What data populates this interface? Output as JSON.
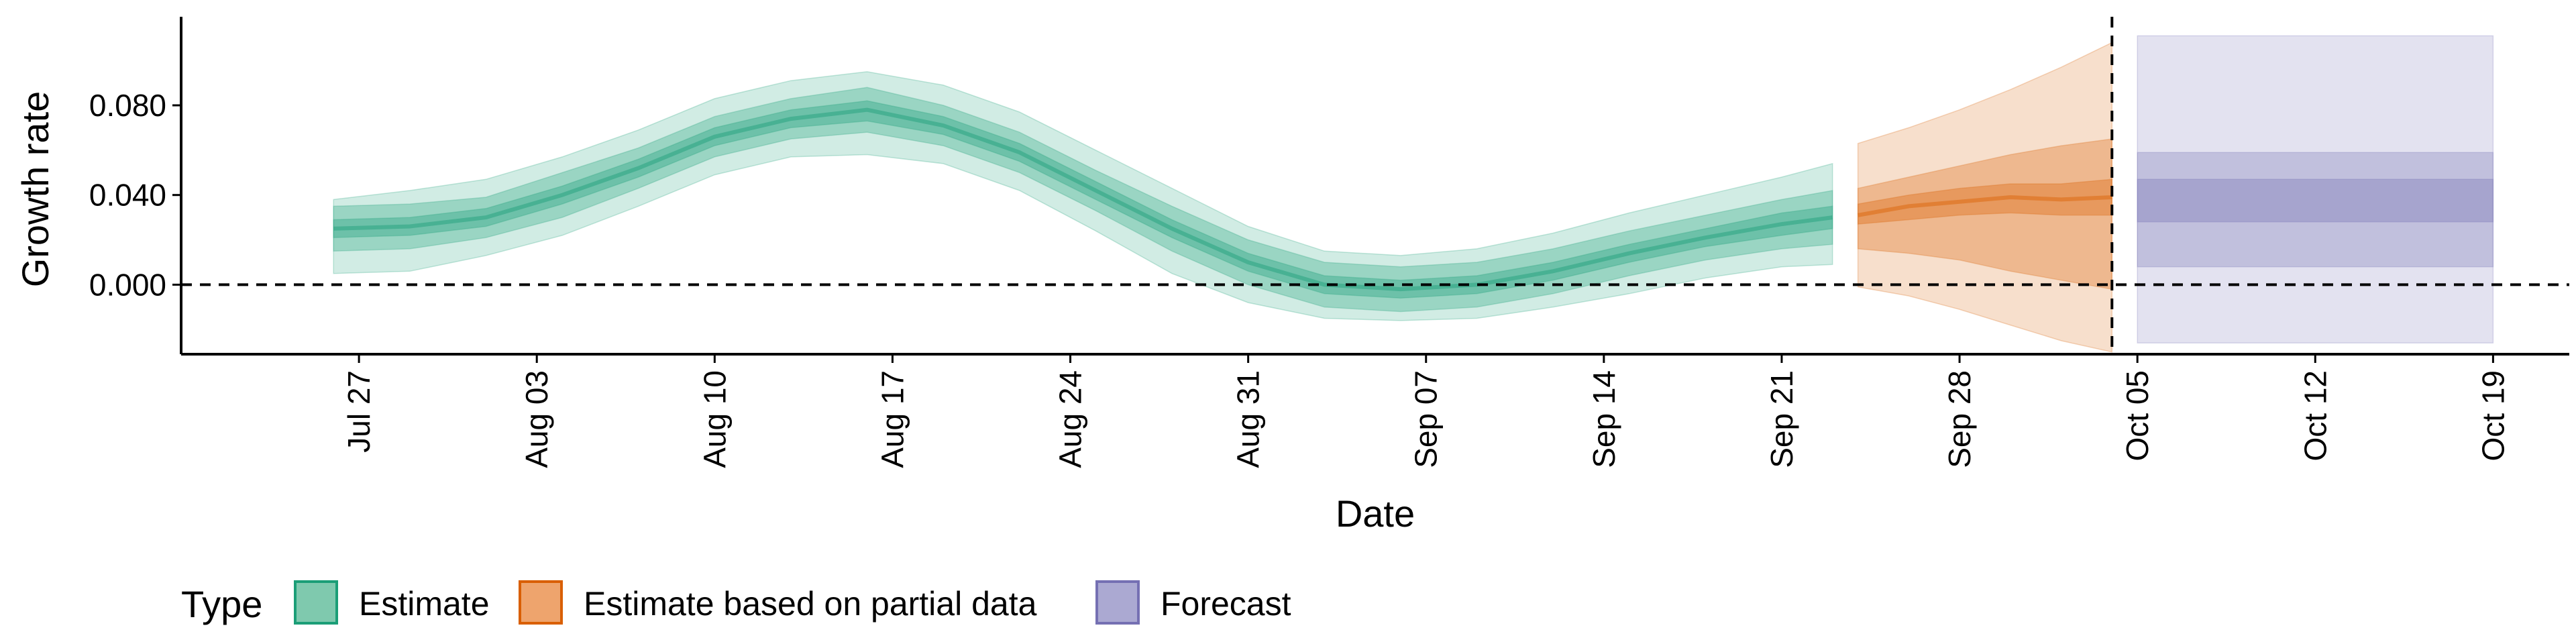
{
  "chart_data": {
    "type": "area",
    "xlabel": "Date",
    "ylabel": "Growth rate",
    "ylim": [
      -0.031,
      0.118
    ],
    "yticks": [
      0.0,
      0.04,
      0.08
    ],
    "ytick_labels": [
      "0.000",
      "0.040",
      "0.080"
    ],
    "xlim": [
      "2020-07-20",
      "2020-10-22"
    ],
    "xticks": [
      {
        "date": "2020-07-27",
        "label": "Jul 27"
      },
      {
        "date": "2020-08-03",
        "label": "Aug 03"
      },
      {
        "date": "2020-08-10",
        "label": "Aug 10"
      },
      {
        "date": "2020-08-17",
        "label": "Aug 17"
      },
      {
        "date": "2020-08-24",
        "label": "Aug 24"
      },
      {
        "date": "2020-08-31",
        "label": "Aug 31"
      },
      {
        "date": "2020-09-07",
        "label": "Sep 07"
      },
      {
        "date": "2020-09-14",
        "label": "Sep 14"
      },
      {
        "date": "2020-09-21",
        "label": "Sep 21"
      },
      {
        "date": "2020-09-28",
        "label": "Sep 28"
      },
      {
        "date": "2020-10-05",
        "label": "Oct 05"
      },
      {
        "date": "2020-10-12",
        "label": "Oct 12"
      },
      {
        "date": "2020-10-19",
        "label": "Oct 19"
      }
    ],
    "hline": 0.0,
    "vline": "2020-10-04",
    "legend": {
      "title": "Type",
      "position": "bottom",
      "entries": [
        {
          "label": "Estimate",
          "fill": "#7fc9ae",
          "stroke": "#1b9e77"
        },
        {
          "label": "Estimate based on partial data",
          "fill": "#eea46d",
          "stroke": "#d95f02"
        },
        {
          "label": "Forecast",
          "fill": "#aba9d2",
          "stroke": "#7570b3"
        }
      ]
    },
    "series": [
      {
        "type": "Estimate",
        "color": "#1b9e77",
        "x": [
          "2020-07-26",
          "2020-07-29",
          "2020-08-01",
          "2020-08-04",
          "2020-08-07",
          "2020-08-10",
          "2020-08-13",
          "2020-08-16",
          "2020-08-19",
          "2020-08-22",
          "2020-08-25",
          "2020-08-28",
          "2020-08-31",
          "2020-09-03",
          "2020-09-06",
          "2020-09-09",
          "2020-09-12",
          "2020-09-15",
          "2020-09-18",
          "2020-09-21",
          "2020-09-23"
        ],
        "median": [
          0.025,
          0.026,
          0.03,
          0.04,
          0.052,
          0.066,
          0.074,
          0.078,
          0.071,
          0.059,
          0.042,
          0.025,
          0.01,
          0.0,
          -0.002,
          0.0,
          0.006,
          0.014,
          0.021,
          0.027,
          0.03
        ],
        "inner_low": [
          0.021,
          0.022,
          0.026,
          0.036,
          0.048,
          0.062,
          0.07,
          0.073,
          0.067,
          0.055,
          0.038,
          0.021,
          0.006,
          -0.004,
          -0.006,
          -0.004,
          0.002,
          0.01,
          0.017,
          0.022,
          0.025
        ],
        "inner_high": [
          0.029,
          0.03,
          0.034,
          0.044,
          0.056,
          0.07,
          0.078,
          0.082,
          0.075,
          0.063,
          0.046,
          0.029,
          0.014,
          0.004,
          0.002,
          0.004,
          0.01,
          0.018,
          0.025,
          0.032,
          0.035
        ],
        "mid_low": [
          0.015,
          0.016,
          0.021,
          0.03,
          0.043,
          0.057,
          0.065,
          0.068,
          0.062,
          0.05,
          0.033,
          0.015,
          0.0,
          -0.01,
          -0.012,
          -0.01,
          -0.004,
          0.004,
          0.011,
          0.016,
          0.018
        ],
        "mid_high": [
          0.035,
          0.036,
          0.039,
          0.05,
          0.061,
          0.075,
          0.083,
          0.088,
          0.08,
          0.068,
          0.051,
          0.035,
          0.02,
          0.01,
          0.008,
          0.01,
          0.016,
          0.024,
          0.031,
          0.038,
          0.042
        ],
        "outer_low": [
          0.005,
          0.006,
          0.013,
          0.022,
          0.035,
          0.049,
          0.057,
          0.058,
          0.054,
          0.042,
          0.024,
          0.005,
          -0.008,
          -0.015,
          -0.016,
          -0.015,
          -0.01,
          -0.004,
          0.003,
          0.008,
          0.009
        ],
        "outer_high": [
          0.038,
          0.042,
          0.047,
          0.057,
          0.069,
          0.083,
          0.091,
          0.095,
          0.089,
          0.077,
          0.06,
          0.043,
          0.026,
          0.015,
          0.013,
          0.016,
          0.023,
          0.032,
          0.04,
          0.048,
          0.054
        ]
      },
      {
        "type": "Estimate based on partial data",
        "color": "#d95f02",
        "x": [
          "2020-09-24",
          "2020-09-26",
          "2020-09-28",
          "2020-09-30",
          "2020-10-02",
          "2020-10-04"
        ],
        "median": [
          0.031,
          0.035,
          0.037,
          0.039,
          0.038,
          0.039
        ],
        "inner_low": [
          0.027,
          0.029,
          0.031,
          0.032,
          0.031,
          0.031
        ],
        "inner_high": [
          0.036,
          0.04,
          0.043,
          0.045,
          0.045,
          0.047
        ],
        "mid_low": [
          0.016,
          0.014,
          0.011,
          0.006,
          0.002,
          -0.002
        ],
        "mid_high": [
          0.043,
          0.048,
          0.053,
          0.058,
          0.062,
          0.065
        ],
        "outer_low": [
          -0.001,
          -0.005,
          -0.011,
          -0.018,
          -0.025,
          -0.03
        ],
        "outer_high": [
          0.063,
          0.07,
          0.078,
          0.087,
          0.097,
          0.108
        ]
      },
      {
        "type": "Forecast",
        "color": "#7570b3",
        "x": [
          "2020-10-05",
          "2020-10-19"
        ],
        "inner_low": [
          0.028,
          0.028
        ],
        "inner_high": [
          0.047,
          0.047
        ],
        "mid_low": [
          0.008,
          0.008
        ],
        "mid_high": [
          0.059,
          0.059
        ],
        "outer_low": [
          -0.026,
          -0.026
        ],
        "outer_high": [
          0.111,
          0.111
        ]
      }
    ]
  }
}
